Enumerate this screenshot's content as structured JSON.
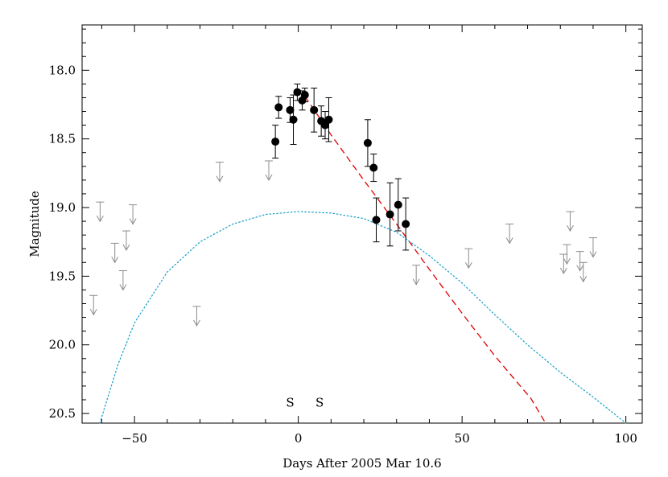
{
  "chart_data": {
    "type": "scatter",
    "xlabel": "Days After 2005 Mar 10.6",
    "ylabel": "Magnitude",
    "xlim": [
      -66,
      105
    ],
    "ylim": [
      20.57,
      17.67
    ],
    "y_inverted": true,
    "x_major_ticks": [
      -50,
      0,
      50,
      100
    ],
    "x_tick_labels": [
      "−50",
      "0",
      "50",
      "100"
    ],
    "x_minor_step": 10,
    "y_major_ticks": [
      18.0,
      18.5,
      19.0,
      19.5,
      20.0,
      20.5
    ],
    "y_tick_labels": [
      "18.0",
      "18.5",
      "19.0",
      "19.5",
      "20.0",
      "20.5"
    ],
    "y_minor_step": 0.1,
    "grid": false,
    "legend": "none",
    "colors": {
      "detections": "#000000",
      "upper_limits": "#8c8c8c",
      "red_model": "#e00000",
      "blue_model": "#1fa3cc"
    },
    "series": [
      {
        "kind": "detections_with_errors",
        "points": [
          {
            "x": -7.0,
            "y": 18.52,
            "err": 0.12
          },
          {
            "x": -6.0,
            "y": 18.27,
            "err": 0.08
          },
          {
            "x": -2.5,
            "y": 18.29,
            "err": 0.09
          },
          {
            "x": -1.5,
            "y": 18.36,
            "err": 0.18
          },
          {
            "x": -0.3,
            "y": 18.16,
            "err": 0.06
          },
          {
            "x": 1.2,
            "y": 18.22,
            "err": 0.07
          },
          {
            "x": 2.0,
            "y": 18.18,
            "err": 0.05
          },
          {
            "x": 4.8,
            "y": 18.29,
            "err": 0.16
          },
          {
            "x": 7.0,
            "y": 18.37,
            "err": 0.11
          },
          {
            "x": 8.2,
            "y": 18.4,
            "err": 0.1
          },
          {
            "x": 9.3,
            "y": 18.36,
            "err": 0.16
          },
          {
            "x": 21.2,
            "y": 18.53,
            "err": 0.17
          },
          {
            "x": 23.0,
            "y": 18.71,
            "err": 0.1
          },
          {
            "x": 23.8,
            "y": 19.09,
            "err": 0.16
          },
          {
            "x": 28.0,
            "y": 19.05,
            "err": 0.23
          },
          {
            "x": 30.5,
            "y": 18.98,
            "err": 0.19
          },
          {
            "x": 32.8,
            "y": 19.12,
            "err": 0.19
          }
        ]
      },
      {
        "kind": "upper_limits",
        "points": [
          {
            "x": -62.5,
            "y": 19.64
          },
          {
            "x": -60.5,
            "y": 18.96
          },
          {
            "x": -56.0,
            "y": 19.26
          },
          {
            "x": -53.5,
            "y": 19.46
          },
          {
            "x": -52.5,
            "y": 19.17
          },
          {
            "x": -50.5,
            "y": 18.98
          },
          {
            "x": -31.0,
            "y": 19.72
          },
          {
            "x": -24.0,
            "y": 18.67
          },
          {
            "x": -9.0,
            "y": 18.66
          },
          {
            "x": 36.0,
            "y": 19.42
          },
          {
            "x": 52.0,
            "y": 19.3
          },
          {
            "x": 64.5,
            "y": 19.12
          },
          {
            "x": 81.0,
            "y": 19.34
          },
          {
            "x": 82.0,
            "y": 19.27
          },
          {
            "x": 83.0,
            "y": 19.03
          },
          {
            "x": 86.0,
            "y": 19.32
          },
          {
            "x": 87.0,
            "y": 19.4
          },
          {
            "x": 90.0,
            "y": 19.22
          }
        ]
      },
      {
        "kind": "model_dashed",
        "color": "#e00000",
        "points": [
          {
            "x": 2,
            "y": 18.19
          },
          {
            "x": 10,
            "y": 18.47
          },
          {
            "x": 20,
            "y": 18.8
          },
          {
            "x": 30,
            "y": 19.12
          },
          {
            "x": 40,
            "y": 19.45
          },
          {
            "x": 50,
            "y": 19.77
          },
          {
            "x": 60,
            "y": 20.08
          },
          {
            "x": 66,
            "y": 20.25
          },
          {
            "x": 71,
            "y": 20.39
          },
          {
            "x": 75.5,
            "y": 20.57
          }
        ]
      },
      {
        "kind": "model_dotted",
        "color": "#1fa3cc",
        "points": [
          {
            "x": -60.6,
            "y": 20.57
          },
          {
            "x": -55,
            "y": 20.14
          },
          {
            "x": -50,
            "y": 19.84
          },
          {
            "x": -40,
            "y": 19.47
          },
          {
            "x": -30,
            "y": 19.25
          },
          {
            "x": -20,
            "y": 19.12
          },
          {
            "x": -10,
            "y": 19.05
          },
          {
            "x": 0,
            "y": 19.03
          },
          {
            "x": 10,
            "y": 19.04
          },
          {
            "x": 20,
            "y": 19.08
          },
          {
            "x": 30,
            "y": 19.18
          },
          {
            "x": 40,
            "y": 19.35
          },
          {
            "x": 50,
            "y": 19.55
          },
          {
            "x": 60,
            "y": 19.78
          },
          {
            "x": 70,
            "y": 20.0
          },
          {
            "x": 80,
            "y": 20.2
          },
          {
            "x": 90,
            "y": 20.38
          },
          {
            "x": 100,
            "y": 20.57
          }
        ]
      }
    ],
    "annotations": [
      {
        "text": "S",
        "x": -2.5,
        "y": 20.42
      },
      {
        "text": "S",
        "x": 6.5,
        "y": 20.42
      }
    ]
  }
}
